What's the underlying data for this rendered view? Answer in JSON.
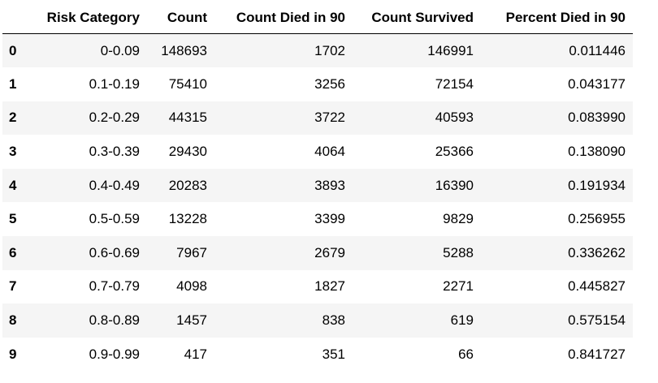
{
  "table": {
    "index_header": "",
    "columns": [
      "Risk Category",
      "Count",
      "Count Died in 90",
      "Count Survived",
      "Percent Died in 90"
    ],
    "rows": [
      {
        "index": "0",
        "cells": [
          "0-0.09",
          "148693",
          "1702",
          "146991",
          "0.011446"
        ]
      },
      {
        "index": "1",
        "cells": [
          "0.1-0.19",
          "75410",
          "3256",
          "72154",
          "0.043177"
        ]
      },
      {
        "index": "2",
        "cells": [
          "0.2-0.29",
          "44315",
          "3722",
          "40593",
          "0.083990"
        ]
      },
      {
        "index": "3",
        "cells": [
          "0.3-0.39",
          "29430",
          "4064",
          "25366",
          "0.138090"
        ]
      },
      {
        "index": "4",
        "cells": [
          "0.4-0.49",
          "20283",
          "3893",
          "16390",
          "0.191934"
        ]
      },
      {
        "index": "5",
        "cells": [
          "0.5-0.59",
          "13228",
          "3399",
          "9829",
          "0.256955"
        ]
      },
      {
        "index": "6",
        "cells": [
          "0.6-0.69",
          "7967",
          "2679",
          "5288",
          "0.336262"
        ]
      },
      {
        "index": "7",
        "cells": [
          "0.7-0.79",
          "4098",
          "1827",
          "2271",
          "0.445827"
        ]
      },
      {
        "index": "8",
        "cells": [
          "0.8-0.89",
          "1457",
          "838",
          "619",
          "0.575154"
        ]
      },
      {
        "index": "9",
        "cells": [
          "0.9-0.99",
          "417",
          "351",
          "66",
          "0.841727"
        ]
      }
    ]
  },
  "colors": {
    "odd_row_background": "#f5f5f5",
    "even_row_background": "#ffffff",
    "header_border": "#000000",
    "text": "#000000"
  }
}
